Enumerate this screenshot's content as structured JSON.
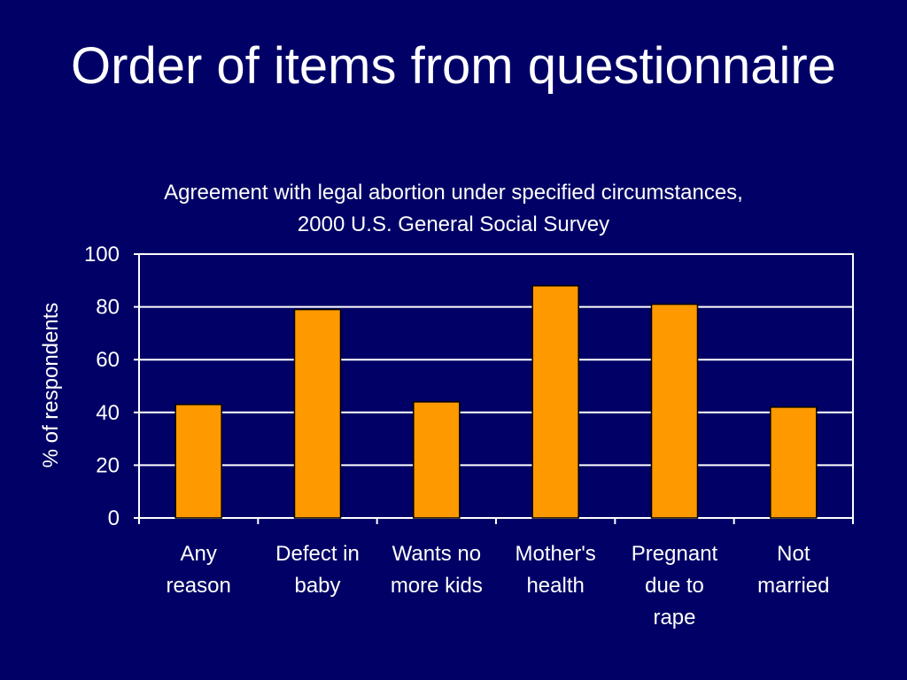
{
  "slide": {
    "title": "Order of items from questionnaire"
  },
  "colors": {
    "background": "#000066",
    "bar": "#FF9900",
    "text": "#FFFFFF",
    "grid": "#FFFFFF"
  },
  "chart_data": {
    "type": "bar",
    "title": "Agreement with legal abortion under specified circumstances,",
    "subtitle": "2000 U.S. General Social Survey",
    "xlabel": "",
    "ylabel": "% of respondents",
    "categories": [
      "Any\nreason",
      "Defect in\nbaby",
      "Wants no\nmore kids",
      "Mother's\nhealth",
      "Pregnant\ndue to\nrape",
      "Not\nmarried"
    ],
    "values": [
      43,
      79,
      44,
      88,
      81,
      42
    ],
    "ylim": [
      0,
      100
    ],
    "yticks": [
      0,
      20,
      40,
      60,
      80,
      100
    ],
    "grid": true,
    "legend": "none"
  }
}
